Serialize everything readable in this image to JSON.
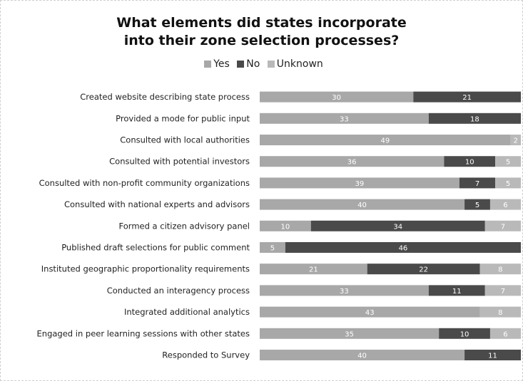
{
  "colors": {
    "yes": "#a8a8a8",
    "no": "#4a4a4a",
    "unknown": "#b9b9b9"
  },
  "chart_data": {
    "type": "bar",
    "orientation": "horizontal",
    "stacked": true,
    "title_line1": "What elements did states incorporate",
    "title_line2": "into their zone selection processes?",
    "legend_position": "top",
    "categories": [
      "Created website describing state process",
      "Provided a mode for public input",
      "Consulted with local authorities",
      "Consulted with potential investors",
      "Consulted with non-profit community organizations",
      "Consulted with national experts and advisors",
      "Formed a citizen advisory panel",
      "Published draft selections for public comment",
      "Instituted geographic proportionality requirements",
      "Conducted an interagency process",
      "Integrated additional analytics",
      "Engaged in peer learning sessions with other states",
      "Responded to Survey"
    ],
    "series": [
      {
        "name": "Yes",
        "key": "yes",
        "values": [
          30,
          33,
          49,
          36,
          39,
          40,
          10,
          5,
          21,
          33,
          43,
          35,
          40
        ],
        "labels": [
          "30",
          "33",
          "49",
          "36",
          "39",
          "40",
          "10",
          "5",
          "21",
          "33",
          "43",
          "35",
          "40"
        ]
      },
      {
        "name": "No",
        "key": "no",
        "values": [
          21,
          18,
          0,
          10,
          7,
          5,
          34,
          46,
          22,
          11,
          0,
          10,
          11
        ],
        "labels": [
          "21",
          "18",
          "",
          "10",
          "7",
          "5",
          "34",
          "46",
          "22",
          "11",
          "",
          "10",
          "11"
        ]
      },
      {
        "name": "Unknown",
        "key": "unknown",
        "values": [
          0,
          0,
          2,
          5,
          5,
          6,
          7,
          0,
          8,
          7,
          8,
          6,
          0
        ],
        "labels": [
          "",
          "",
          "2",
          "5",
          "5",
          "6",
          "7",
          "",
          "8",
          "7",
          "8",
          "6",
          ""
        ]
      }
    ],
    "xlim": [
      0,
      51
    ],
    "grid": false
  }
}
